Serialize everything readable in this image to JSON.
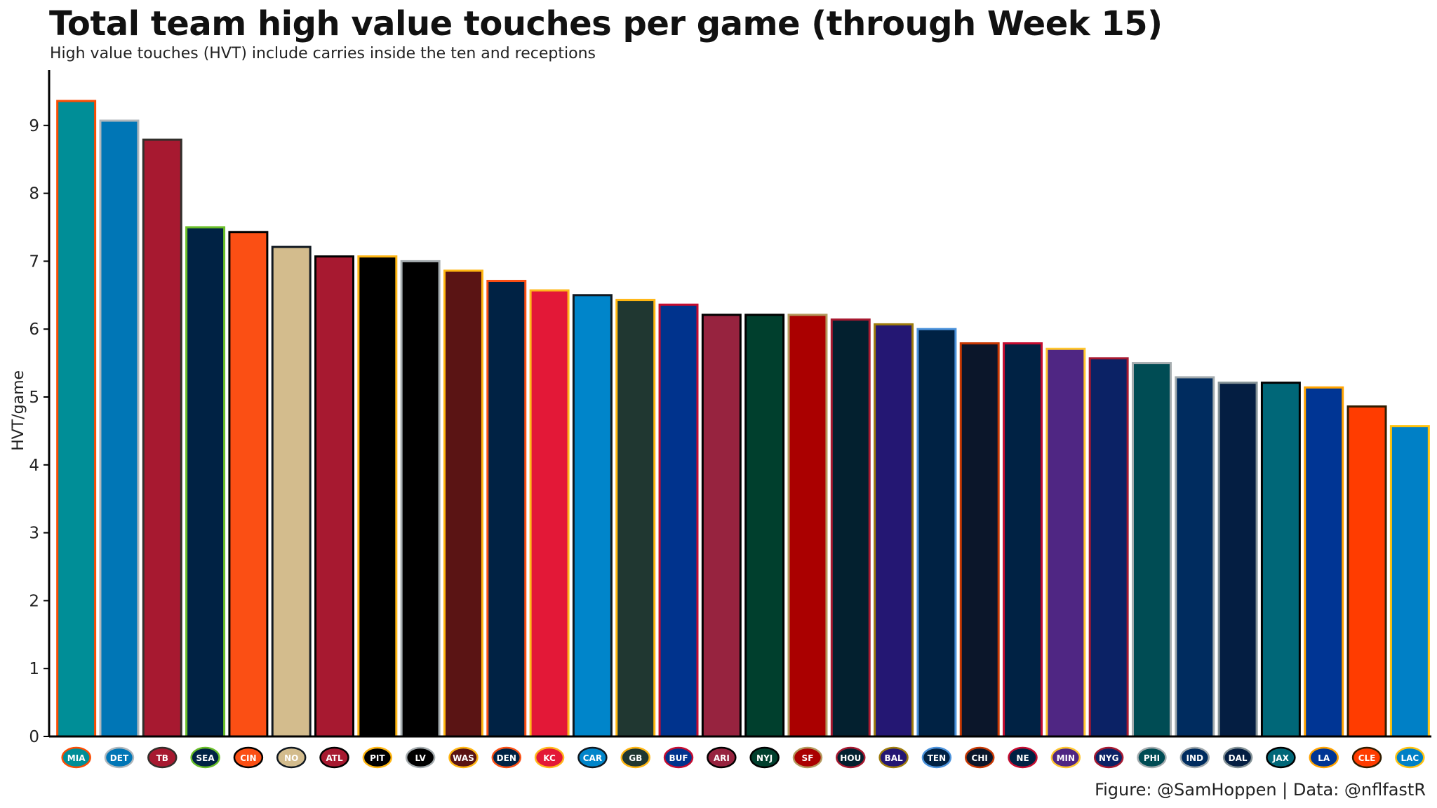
{
  "header": {
    "title": "Total team high value touches per game (through Week 15)",
    "subtitle": "High value touches (HVT) include carries inside the ten and receptions"
  },
  "footer": {
    "caption": "Figure: @SamHoppen | Data: @nflfastR"
  },
  "chart_data": {
    "type": "bar",
    "title": "Total team high value touches per game (through Week 15)",
    "subtitle": "High value touches (HVT) include carries inside the ten and receptions",
    "xlabel": "",
    "ylabel": "HVT/game",
    "ylim": [
      0,
      9.6
    ],
    "yticks": [
      0,
      1,
      2,
      3,
      4,
      5,
      6,
      7,
      8,
      9
    ],
    "grid": false,
    "legend": "none",
    "categories": [
      "MIA",
      "DET",
      "TB",
      "SEA",
      "CIN",
      "NO",
      "ATL",
      "PIT",
      "LV",
      "WAS",
      "DEN",
      "KC",
      "CAR",
      "GB",
      "BUF",
      "ARI",
      "NYJ",
      "SF",
      "HOU",
      "BAL",
      "TEN",
      "CHI",
      "NE",
      "MIN",
      "NYG",
      "PHI",
      "IND",
      "DAL",
      "JAX",
      "LA",
      "CLE",
      "LAC"
    ],
    "values": [
      9.36,
      9.07,
      8.79,
      7.5,
      7.43,
      7.21,
      7.07,
      7.07,
      7.0,
      6.86,
      6.71,
      6.57,
      6.5,
      6.43,
      6.36,
      6.21,
      6.21,
      6.21,
      6.14,
      6.07,
      6.0,
      5.79,
      5.79,
      5.71,
      5.57,
      5.5,
      5.29,
      5.21,
      5.21,
      5.14,
      4.86,
      4.57
    ],
    "fill_colors": [
      "#008E97",
      "#0076B6",
      "#A71930",
      "#002244",
      "#FB4F14",
      "#D3BC8D",
      "#A71930",
      "#000000",
      "#000000",
      "#5A1414",
      "#002244",
      "#E31837",
      "#0085CA",
      "#203731",
      "#00338D",
      "#97233F",
      "#003F2D",
      "#AA0000",
      "#03202F",
      "#241773",
      "#002244",
      "#0B162A",
      "#002244",
      "#4F2683",
      "#0B2265",
      "#004C54",
      "#002C5F",
      "#041E42",
      "#006778",
      "#003594",
      "#FF3C00",
      "#0080C6"
    ],
    "outline_colors": [
      "#FC4C02",
      "#B0B7BC",
      "#322F2B",
      "#69BE28",
      "#000000",
      "#101820",
      "#000000",
      "#FFB612",
      "#A5ACAF",
      "#FFB612",
      "#FB4F14",
      "#FFB81C",
      "#101820",
      "#FFB612",
      "#C60C30",
      "#000000",
      "#000000",
      "#B3995D",
      "#A71930",
      "#9E7C0C",
      "#4B92DB",
      "#C83803",
      "#C60C30",
      "#FFC62F",
      "#A71930",
      "#A5ACAF",
      "#A2AAAD",
      "#869397",
      "#000000",
      "#FFA300",
      "#311D00",
      "#FFC20E"
    ],
    "team_logo_icons": [
      "dolphins-logo-icon",
      "lions-logo-icon",
      "buccaneers-logo-icon",
      "seahawks-logo-icon",
      "bengals-logo-icon",
      "saints-logo-icon",
      "falcons-logo-icon",
      "steelers-logo-icon",
      "raiders-logo-icon",
      "commanders-logo-icon",
      "broncos-logo-icon",
      "chiefs-logo-icon",
      "panthers-logo-icon",
      "packers-logo-icon",
      "bills-logo-icon",
      "cardinals-logo-icon",
      "jets-logo-icon",
      "49ers-logo-icon",
      "texans-logo-icon",
      "ravens-logo-icon",
      "titans-logo-icon",
      "bears-logo-icon",
      "patriots-logo-icon",
      "vikings-logo-icon",
      "giants-logo-icon",
      "eagles-logo-icon",
      "colts-logo-icon",
      "cowboys-logo-icon",
      "jaguars-logo-icon",
      "rams-logo-icon",
      "browns-logo-icon",
      "chargers-logo-icon"
    ]
  }
}
